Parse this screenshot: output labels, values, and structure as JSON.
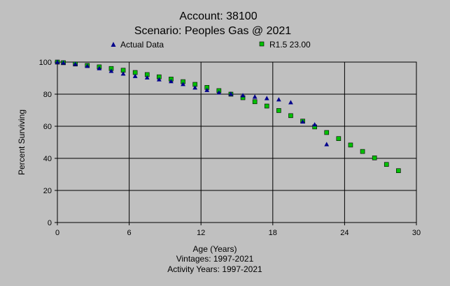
{
  "chart_data": {
    "type": "scatter",
    "title_line1": "Account: 38100",
    "title_line2": "Scenario: Peoples Gas @ 2021",
    "xlabel": "Age (Years)",
    "ylabel": "Percent Surviving",
    "footer_line1": "Vintages: 1997-2021",
    "footer_line2": "Activity Years: 1997-2021",
    "xlim": [
      0,
      30
    ],
    "ylim": [
      0,
      100
    ],
    "xticks": [
      0,
      6,
      12,
      18,
      24,
      30
    ],
    "yticks": [
      0,
      20,
      40,
      60,
      80,
      100
    ],
    "grid": true,
    "legend_placement": "top",
    "series": [
      {
        "name": "Actual Data",
        "marker": "triangle",
        "color": "#00008b",
        "x": [
          0,
          0.5,
          1.5,
          2.5,
          3.5,
          4.5,
          5.5,
          6.5,
          7.5,
          8.5,
          9.5,
          10.5,
          11.5,
          12.5,
          13.5,
          14.5,
          15.5,
          16.5,
          17.5,
          18.5,
          19.5,
          20.5,
          21.5,
          22.5
        ],
        "y": [
          100,
          99.6,
          98.8,
          97.5,
          96.1,
          94.4,
          92.7,
          91.2,
          90.3,
          89.1,
          88.0,
          86.2,
          84.0,
          82.5,
          81.0,
          80.1,
          79.2,
          78.3,
          77.4,
          76.6,
          74.8,
          62.8,
          61.0,
          48.7
        ]
      },
      {
        "name": "R1.5 23.00",
        "marker": "square",
        "color": "#00c000",
        "x": [
          0,
          0.5,
          1.5,
          2.5,
          3.5,
          4.5,
          5.5,
          6.5,
          7.5,
          8.5,
          9.5,
          10.5,
          11.5,
          12.5,
          13.5,
          14.5,
          15.5,
          16.5,
          17.5,
          18.5,
          19.5,
          20.5,
          21.5,
          22.5,
          23.5,
          24.5,
          25.5,
          26.5,
          27.5,
          28.5
        ],
        "y": [
          100,
          99.6,
          98.8,
          97.9,
          97.0,
          96.0,
          94.9,
          93.5,
          92.2,
          90.8,
          89.4,
          87.8,
          86.1,
          84.2,
          82.2,
          80.0,
          77.8,
          75.3,
          72.6,
          69.8,
          66.6,
          63.2,
          59.6,
          56.1,
          52.3,
          48.3,
          44.3,
          40.3,
          36.2,
          32.3
        ]
      }
    ]
  }
}
